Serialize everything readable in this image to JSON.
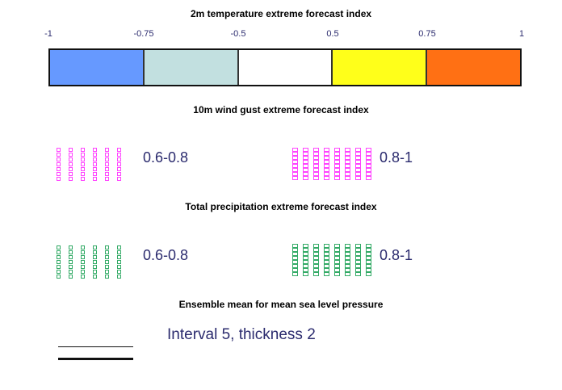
{
  "temperature": {
    "title": "2m temperature extreme forecast index",
    "ticks": [
      "-1",
      "-0.75",
      "-0.5",
      "0.5",
      "0.75",
      "1"
    ],
    "colors": [
      "#6699ff",
      "#c2e0e0",
      "#ffffff",
      "#ffff1a",
      "#ff7014"
    ]
  },
  "wind_gust": {
    "title": "10m wind gust extreme forecast index",
    "color": "#ff44ff",
    "ranges": [
      "0.6-0.8",
      "0.8-1"
    ]
  },
  "precipitation": {
    "title": "Total precipitation extreme forecast index",
    "color": "#33aa66",
    "ranges": [
      "0.6-0.8",
      "0.8-1"
    ]
  },
  "pressure": {
    "title": "Ensemble mean for mean sea level pressure",
    "line_label": "Interval 5, thickness 2"
  }
}
